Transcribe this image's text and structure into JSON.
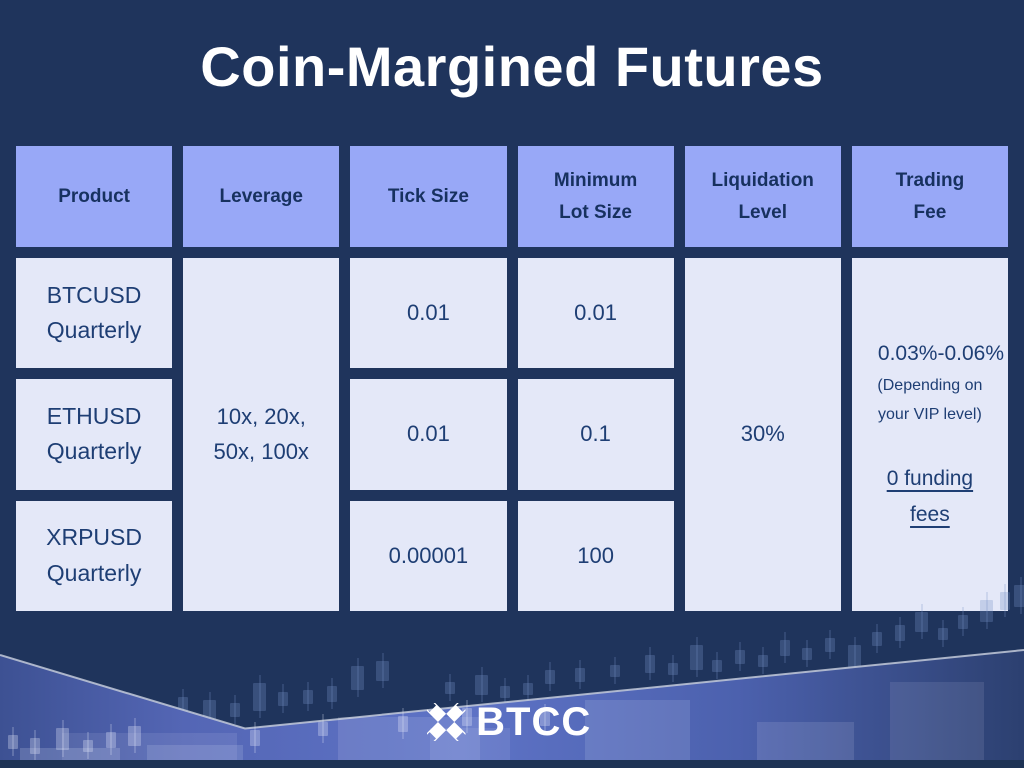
{
  "title": "Coin-Margined Futures",
  "table": {
    "columns": [
      {
        "label": "Product"
      },
      {
        "label": "Leverage"
      },
      {
        "label": "Tick Size"
      },
      {
        "label": "Minimum Lot Size"
      },
      {
        "label": "Liquidation Level"
      },
      {
        "label": "Trading Fee"
      }
    ],
    "rows": [
      {
        "product": "BTCUSD Quarterly",
        "tick_size": "0.01",
        "min_lot": "0.01"
      },
      {
        "product": "ETHUSD Quarterly",
        "tick_size": "0.01",
        "min_lot": "0.1"
      },
      {
        "product": "XRPUSD Quarterly",
        "tick_size": "0.00001",
        "min_lot": "100"
      }
    ],
    "merged": {
      "leverage": "10x, 20x, 50x, 100x",
      "liquidation_level": "30%",
      "trading_fee": {
        "range": "0.03%-0.06%",
        "note": "(Depending on your VIP level)",
        "funding": "0 funding fees"
      }
    }
  },
  "footer": {
    "brand": "BTCC"
  },
  "colors": {
    "background": "#1f345c",
    "header_cell": "#98a8f7",
    "data_cell": "#e4e8f8",
    "header_text": "#17315f",
    "cell_text": "#1e3e74",
    "title_text": "#ffffff",
    "strip": "#1e3355",
    "chart_line": "#c3cad9"
  }
}
